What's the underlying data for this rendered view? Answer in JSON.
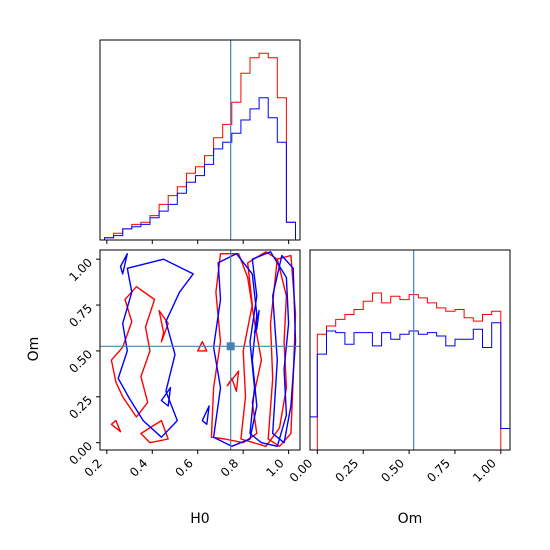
{
  "colors": {
    "red": "#ff0000",
    "blue": "#0000ff",
    "truth": "#4682b4",
    "frame": "#000000"
  },
  "chart_data": [
    {
      "type": "histogram",
      "panel": "H0 marginal",
      "xlim": [
        0.17,
        1.05
      ],
      "bin_edges": [
        0.19,
        0.23,
        0.27,
        0.31,
        0.35,
        0.39,
        0.43,
        0.47,
        0.51,
        0.55,
        0.59,
        0.63,
        0.67,
        0.71,
        0.75,
        0.79,
        0.83,
        0.87,
        0.91,
        0.95,
        0.99,
        1.03
      ],
      "series": [
        {
          "color": "red",
          "counts": [
            1,
            3,
            5,
            7,
            8,
            11,
            16,
            20,
            24,
            30,
            33,
            38,
            46,
            52,
            62,
            75,
            82,
            84,
            82,
            64,
            8
          ]
        },
        {
          "color": "blue",
          "counts": [
            1,
            2,
            5,
            6,
            7,
            10,
            13,
            16,
            21,
            26,
            29,
            34,
            41,
            44,
            48,
            54,
            59,
            64,
            55,
            44,
            8
          ]
        }
      ],
      "truth": 0.745
    },
    {
      "type": "contour",
      "panel": "H0 vs Om",
      "xlabel": "H0",
      "ylabel": "Om",
      "xlim": [
        0.17,
        1.05
      ],
      "ylim": [
        -0.04,
        1.05
      ],
      "xticks": [
        "0.2",
        "0.4",
        "0.6",
        "0.8",
        "1.0"
      ],
      "yticks": [
        "0.00",
        "0.25",
        "0.50",
        "0.75",
        "1.00"
      ],
      "truth": [
        0.745,
        0.525
      ],
      "series": [
        {
          "color": "red",
          "contours": [
            [
              [
                0.22,
                0.45
              ],
              [
                0.27,
                0.52
              ],
              [
                0.31,
                0.66
              ],
              [
                0.28,
                0.78
              ],
              [
                0.33,
                0.85
              ],
              [
                0.41,
                0.78
              ],
              [
                0.37,
                0.63
              ],
              [
                0.39,
                0.5
              ],
              [
                0.35,
                0.36
              ],
              [
                0.38,
                0.22
              ],
              [
                0.33,
                0.14
              ],
              [
                0.27,
                0.25
              ],
              [
                0.24,
                0.33
              ]
            ],
            [
              [
                0.35,
                0.05
              ],
              [
                0.44,
                0.12
              ],
              [
                0.47,
                0.02
              ],
              [
                0.39,
                0.0
              ]
            ],
            [
              [
                0.22,
                0.1
              ],
              [
                0.26,
                0.06
              ],
              [
                0.24,
                0.12
              ]
            ],
            [
              [
                0.44,
                0.55
              ],
              [
                0.47,
                0.65
              ],
              [
                0.43,
                0.72
              ],
              [
                0.45,
                0.6
              ]
            ],
            [
              [
                0.6,
                0.5
              ],
              [
                0.62,
                0.55
              ],
              [
                0.64,
                0.5
              ]
            ],
            [
              [
                0.73,
                0.31
              ],
              [
                0.78,
                0.39
              ],
              [
                0.77,
                0.28
              ],
              [
                0.75,
                0.35
              ]
            ],
            [
              [
                0.66,
                0.03
              ],
              [
                0.67,
                0.3
              ],
              [
                0.7,
                0.55
              ],
              [
                0.68,
                0.82
              ],
              [
                0.7,
                1.03
              ],
              [
                0.78,
                1.03
              ],
              [
                0.82,
                0.9
              ],
              [
                0.85,
                0.66
              ],
              [
                0.88,
                0.45
              ],
              [
                0.84,
                0.22
              ],
              [
                0.86,
                0.05
              ],
              [
                0.8,
                0.0
              ],
              [
                0.72,
                0.02
              ]
            ],
            [
              [
                0.79,
                0.02
              ],
              [
                0.81,
                0.25
              ],
              [
                0.8,
                0.5
              ],
              [
                0.84,
                0.75
              ],
              [
                0.82,
                0.98
              ],
              [
                0.9,
                1.04
              ],
              [
                0.95,
                1.0
              ],
              [
                0.99,
                0.8
              ],
              [
                0.98,
                0.55
              ],
              [
                0.99,
                0.3
              ],
              [
                0.96,
                0.08
              ],
              [
                0.9,
                -0.02
              ]
            ],
            [
              [
                0.91,
                0.02
              ],
              [
                0.93,
                0.35
              ],
              [
                0.92,
                0.65
              ],
              [
                0.95,
                1.0
              ],
              [
                1.01,
                1.02
              ],
              [
                1.03,
                0.7
              ],
              [
                1.02,
                0.35
              ],
              [
                1.01,
                0.05
              ],
              [
                0.96,
                -0.02
              ]
            ]
          ]
        },
        {
          "color": "blue",
          "contours": [
            [
              [
                0.25,
                0.35
              ],
              [
                0.29,
                0.5
              ],
              [
                0.27,
                0.65
              ],
              [
                0.31,
                0.82
              ],
              [
                0.29,
                0.95
              ],
              [
                0.45,
                1.0
              ],
              [
                0.58,
                0.92
              ],
              [
                0.52,
                0.82
              ],
              [
                0.46,
                0.66
              ],
              [
                0.5,
                0.48
              ],
              [
                0.46,
                0.28
              ],
              [
                0.51,
                0.12
              ],
              [
                0.44,
                0.03
              ],
              [
                0.36,
                0.12
              ],
              [
                0.3,
                0.24
              ]
            ],
            [
              [
                0.26,
                0.96
              ],
              [
                0.29,
                1.03
              ],
              [
                0.27,
                0.92
              ]
            ],
            [
              [
                0.44,
                0.23
              ],
              [
                0.48,
                0.3
              ],
              [
                0.47,
                0.2
              ]
            ],
            [
              [
                0.62,
                0.12
              ],
              [
                0.65,
                0.2
              ],
              [
                0.64,
                0.1
              ]
            ],
            [
              [
                0.67,
                0.03
              ],
              [
                0.7,
                0.3
              ],
              [
                0.67,
                0.52
              ],
              [
                0.7,
                0.78
              ],
              [
                0.69,
                0.98
              ],
              [
                0.77,
                1.03
              ],
              [
                0.84,
                0.92
              ],
              [
                0.86,
                0.7
              ],
              [
                0.84,
                0.45
              ],
              [
                0.86,
                0.2
              ],
              [
                0.83,
                0.02
              ],
              [
                0.75,
                -0.02
              ]
            ],
            [
              [
                0.83,
                0.05
              ],
              [
                0.85,
                0.3
              ],
              [
                0.83,
                0.55
              ],
              [
                0.86,
                0.8
              ],
              [
                0.84,
                1.0
              ],
              [
                0.92,
                1.04
              ],
              [
                0.99,
                0.9
              ],
              [
                1.0,
                0.65
              ],
              [
                0.98,
                0.4
              ],
              [
                0.99,
                0.15
              ],
              [
                0.95,
                -0.02
              ],
              [
                0.88,
                0.0
              ]
            ],
            [
              [
                0.93,
                0.05
              ],
              [
                0.95,
                0.45
              ],
              [
                0.93,
                0.8
              ],
              [
                0.97,
                1.02
              ],
              [
                1.02,
                0.95
              ],
              [
                1.03,
                0.55
              ],
              [
                1.01,
                0.2
              ],
              [
                0.98,
                0.0
              ]
            ],
            [
              [
                0.85,
                0.6
              ],
              [
                0.87,
                0.72
              ],
              [
                0.86,
                0.62
              ]
            ]
          ]
        }
      ]
    },
    {
      "type": "histogram",
      "panel": "Om marginal",
      "xlabel": "Om",
      "xlim": [
        -0.04,
        1.05
      ],
      "xticks": [
        "0.00",
        "0.25",
        "0.50",
        "0.75",
        "1.00"
      ],
      "bin_edges": [
        -0.05,
        0.0,
        0.05,
        0.1,
        0.15,
        0.2,
        0.25,
        0.3,
        0.35,
        0.4,
        0.45,
        0.5,
        0.55,
        0.6,
        0.65,
        0.7,
        0.75,
        0.8,
        0.85,
        0.9,
        0.95,
        1.0,
        1.05
      ],
      "series": [
        {
          "color": "red",
          "counts": [
            0,
            70,
            75,
            79,
            82,
            85,
            90,
            95,
            89,
            93,
            91,
            94,
            92,
            89,
            86,
            84,
            85,
            80,
            78,
            82,
            84,
            0
          ]
        },
        {
          "color": "blue",
          "counts": [
            20,
            58,
            72,
            71,
            64,
            71,
            71,
            63,
            71,
            67,
            70,
            72,
            70,
            71,
            69,
            63,
            67,
            67,
            73,
            62,
            77,
            13
          ]
        }
      ],
      "truth": 0.525
    }
  ]
}
